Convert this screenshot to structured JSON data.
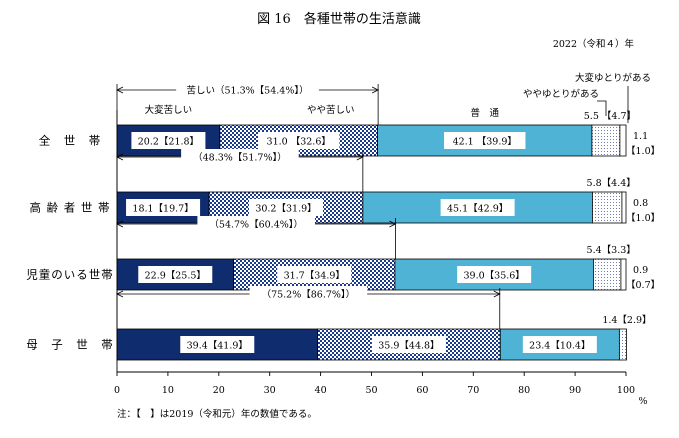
{
  "chart_data": {
    "type": "bar",
    "stacked": true,
    "orientation": "horizontal",
    "title": "図 16　各種世帯の生活意識",
    "subtitle": "2022（令和４）年",
    "x_unit": "%",
    "xlim": [
      0,
      100
    ],
    "x_ticks": [
      "0",
      "10",
      "20",
      "30",
      "40",
      "50",
      "60",
      "70",
      "80",
      "90",
      "100"
    ],
    "grid": false,
    "note": "注：【　】は2019（令和元）年の数値である。",
    "categories": [
      "全　世　帯",
      "高 齢 者 世 帯",
      "児童のいる世帯",
      "母　子　世　帯"
    ],
    "series": [
      {
        "name": "大変苦しい",
        "color": "#0f2d6e",
        "values": [
          20.2,
          18.1,
          22.9,
          39.4
        ],
        "values_2019": [
          21.8,
          19.7,
          25.5,
          41.9
        ]
      },
      {
        "name": "やや苦しい",
        "color": "#7f8fc0",
        "values": [
          31.0,
          30.2,
          31.7,
          35.9
        ],
        "values_2019": [
          32.6,
          31.9,
          34.9,
          44.8
        ]
      },
      {
        "name": "普　通",
        "color": "#4fb3d6",
        "values": [
          42.1,
          45.1,
          39.0,
          23.4
        ],
        "values_2019": [
          39.9,
          42.9,
          35.6,
          10.4
        ]
      },
      {
        "name": "ややゆとりがある",
        "color": "#dfe4f0",
        "values": [
          5.5,
          5.8,
          5.4,
          1.4
        ],
        "values_2019": [
          4.7,
          4.4,
          3.3,
          2.9
        ]
      },
      {
        "name": "大変ゆとりがある",
        "color": "#ffffff",
        "values": [
          1.1,
          0.8,
          0.9,
          0.0
        ],
        "values_2019": [
          1.0,
          1.0,
          0.7,
          null
        ]
      }
    ],
    "value_labels": [
      [
        "20.2【21.8】",
        "31.0 【32.6】",
        "42.1 【39.9】"
      ],
      [
        "18.1【19.7】",
        "30.2【31.9】",
        "45.1【42.9】"
      ],
      [
        "22.9【25.5】",
        "31.7【34.9】",
        "39.0【35.6】"
      ],
      [
        "39.4【41.9】",
        "35.9【44.8】",
        "23.4【10.4】"
      ]
    ],
    "side_labels": [
      {
        "upper": "5.5 【4.7】",
        "right_top": "1.1",
        "right_bottom": "【1.0】"
      },
      {
        "upper": "5.8【4.4】",
        "right_top": "0.8",
        "right_bottom": "【1.0】"
      },
      {
        "upper": "5.4【3.3】",
        "right_top": "0.9",
        "right_bottom": "【0.7】"
      },
      {
        "upper": "1.4【2.9】",
        "right_top": "",
        "right_bottom": ""
      }
    ],
    "brackets": [
      {
        "value": 51.3,
        "label": "苦しい（51.3%【54.4%】）"
      },
      {
        "value": 48.3,
        "label": "（48.3%【51.7%】）"
      },
      {
        "value": 54.7,
        "label": "（54.7%【60.4%】）"
      },
      {
        "value": 75.2,
        "label": "（75.2%【86.7%】）"
      }
    ],
    "legend_labels": {
      "series0": "大変苦しい",
      "series1": "やや苦しい",
      "series2": "普　通",
      "series3": "ややゆとりがある",
      "series4": "大変ゆとりがある"
    }
  }
}
